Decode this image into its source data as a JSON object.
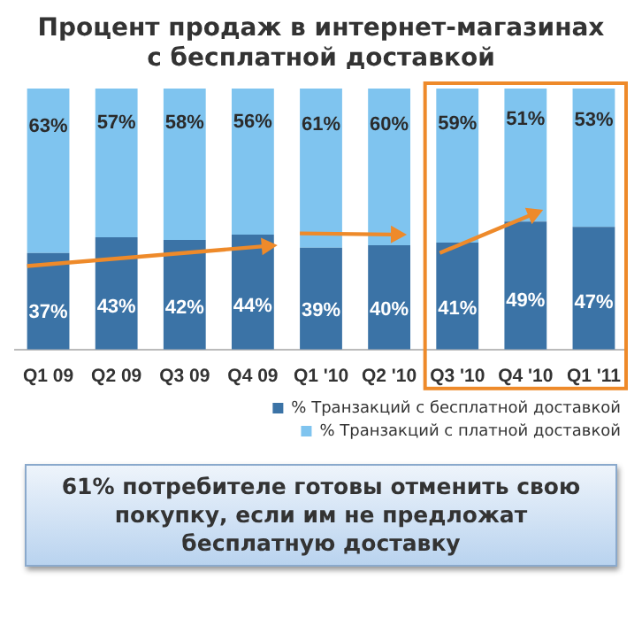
{
  "chart_data": {
    "type": "bar",
    "title": "Процент продаж в интернет-магазинах с бесплатной доставкой",
    "categories": [
      "Q1 09",
      "Q2 09",
      "Q3 09",
      "Q4 09",
      "Q1 '10",
      "Q2 '10",
      "Q3 '10",
      "Q4 '10",
      "Q1 '11"
    ],
    "stacked": true,
    "tick_labels": "x",
    "grid": false,
    "legend": "bottom right",
    "series": [
      {
        "name": "% Транзакций с бесплатной доставкой",
        "color": "#3b73a6",
        "values": [
          37,
          43,
          42,
          44,
          39,
          40,
          41,
          49,
          47
        ],
        "value_labels": [
          "37%",
          "43%",
          "42%",
          "44%",
          "39%",
          "40%",
          "41%",
          "49%",
          "47%"
        ]
      },
      {
        "name": "% Транзакций с платной доставкой",
        "color": "#7fc4ef",
        "values": [
          63,
          57,
          58,
          56,
          61,
          60,
          59,
          51,
          53
        ],
        "value_labels": [
          "63%",
          "57%",
          "58%",
          "56%",
          "61%",
          "60%",
          "59%",
          "51%",
          "53%"
        ]
      }
    ],
    "annotations": [
      "61% потребителе готовы отменить свою покупку, если им не предложат бесплатную доставку"
    ]
  }
}
